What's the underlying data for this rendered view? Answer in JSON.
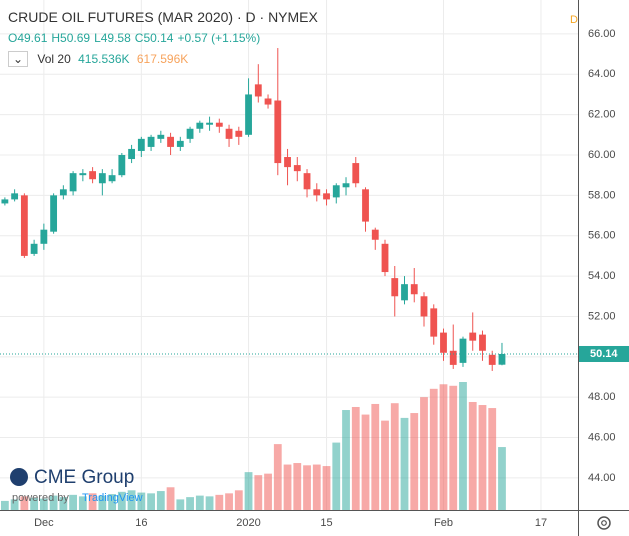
{
  "header": {
    "title": "CRUDE OIL FUTURES (MAR 2020) · D · NYMEX",
    "ohlc": [
      "O49.61",
      "H50.69",
      "L49.58",
      "C50.14",
      "+0.57 (+1.15%)"
    ],
    "volume_label": "Vol 20",
    "volume_value": "415.536K",
    "volume_ma": "617.596K",
    "interval_badge": "D"
  },
  "branding": {
    "logo": "CME Group",
    "powered": "powered by",
    "tradingview": "TradingView"
  },
  "chart_data": {
    "type": "candlestick",
    "open": [
      57.6,
      57.8,
      58.0,
      55.1,
      55.6,
      56.2,
      58.0,
      58.2,
      59.0,
      59.2,
      58.6,
      58.7,
      59.0,
      59.8,
      60.2,
      60.4,
      60.8,
      60.9,
      60.4,
      60.8,
      61.3,
      61.5,
      61.6,
      61.3,
      61.2,
      61.0,
      63.5,
      62.8,
      62.7,
      59.9,
      59.5,
      59.1,
      58.3,
      58.1,
      57.9,
      58.4,
      59.6,
      58.3,
      56.3,
      55.6,
      53.9,
      52.8,
      53.6,
      53.0,
      52.4,
      51.2,
      50.3,
      49.7,
      51.2,
      51.1,
      50.1,
      49.61
    ],
    "high": [
      57.9,
      58.3,
      58.1,
      55.8,
      56.6,
      58.1,
      58.5,
      59.2,
      59.3,
      59.4,
      59.3,
      59.3,
      60.1,
      60.5,
      60.9,
      61.0,
      61.2,
      61.1,
      60.9,
      61.4,
      61.7,
      61.9,
      61.8,
      61.5,
      61.4,
      63.8,
      64.5,
      63.0,
      65.3,
      60.3,
      59.9,
      59.3,
      58.6,
      58.3,
      58.6,
      58.9,
      59.9,
      58.4,
      56.4,
      55.8,
      54.5,
      54.0,
      54.4,
      53.2,
      52.6,
      51.4,
      51.6,
      51.0,
      52.2,
      51.3,
      50.3,
      50.69
    ],
    "low": [
      57.5,
      57.7,
      54.9,
      55.0,
      55.3,
      56.1,
      57.8,
      58.0,
      58.7,
      58.6,
      58.0,
      58.6,
      58.9,
      59.6,
      59.9,
      60.2,
      60.6,
      60.0,
      60.2,
      60.6,
      61.1,
      61.2,
      61.1,
      60.4,
      60.5,
      60.9,
      62.6,
      62.3,
      59.0,
      58.5,
      58.7,
      57.9,
      57.7,
      57.5,
      57.6,
      58.0,
      58.4,
      56.2,
      55.3,
      54.0,
      52.0,
      52.6,
      52.7,
      51.5,
      50.6,
      49.8,
      49.4,
      49.5,
      50.3,
      49.8,
      49.3,
      49.58
    ],
    "close": [
      57.8,
      58.1,
      55.0,
      55.6,
      56.3,
      58.0,
      58.3,
      59.1,
      59.1,
      58.8,
      59.1,
      59.0,
      60.0,
      60.3,
      60.8,
      60.9,
      61.0,
      60.4,
      60.7,
      61.3,
      61.6,
      61.6,
      61.4,
      60.8,
      60.9,
      63.0,
      62.9,
      62.5,
      59.6,
      59.4,
      59.2,
      58.3,
      58.0,
      57.8,
      58.5,
      58.6,
      58.6,
      56.7,
      55.8,
      54.2,
      53.0,
      53.6,
      53.1,
      52.0,
      51.0,
      50.2,
      49.6,
      50.9,
      50.8,
      50.3,
      49.6,
      50.14
    ],
    "volume": [
      60,
      70,
      90,
      80,
      75,
      95,
      85,
      100,
      90,
      110,
      95,
      105,
      120,
      130,
      115,
      110,
      125,
      150,
      70,
      85,
      95,
      90,
      100,
      110,
      130,
      250,
      230,
      240,
      435,
      300,
      310,
      295,
      300,
      290,
      445,
      660,
      680,
      630,
      700,
      590,
      705,
      608,
      640,
      745,
      800,
      830,
      820,
      845,
      713,
      693,
      673,
      415.536
    ],
    "xticks": [
      {
        "value": 4,
        "label": "Dec"
      },
      {
        "value": 14,
        "label": "16"
      },
      {
        "value": 25,
        "label": "2020"
      },
      {
        "value": 33,
        "label": "15"
      },
      {
        "value": 45,
        "label": "Feb"
      },
      {
        "value": 55,
        "label": "17"
      }
    ],
    "xlim": [
      -0.5,
      58.8
    ],
    "ylim": [
      42.41,
      67.68
    ],
    "yticks": [
      {
        "value": 44,
        "label": "44.00"
      },
      {
        "value": 46,
        "label": "46.00"
      },
      {
        "value": 48,
        "label": "48.00"
      },
      {
        "value": 50,
        "label": "50.00"
      },
      {
        "value": 52,
        "label": "52.00"
      },
      {
        "value": 54,
        "label": "54.00"
      },
      {
        "value": 56,
        "label": "56.00"
      },
      {
        "value": 58,
        "label": "58.00"
      },
      {
        "value": 60,
        "label": "60.00"
      },
      {
        "value": 62,
        "label": "62.00"
      },
      {
        "value": 64,
        "label": "64.00"
      },
      {
        "value": 66,
        "label": "66.00"
      }
    ],
    "last_price_label": "50.14",
    "up_color": "#26a69a",
    "down_color": "#ef5350",
    "grid": true
  }
}
